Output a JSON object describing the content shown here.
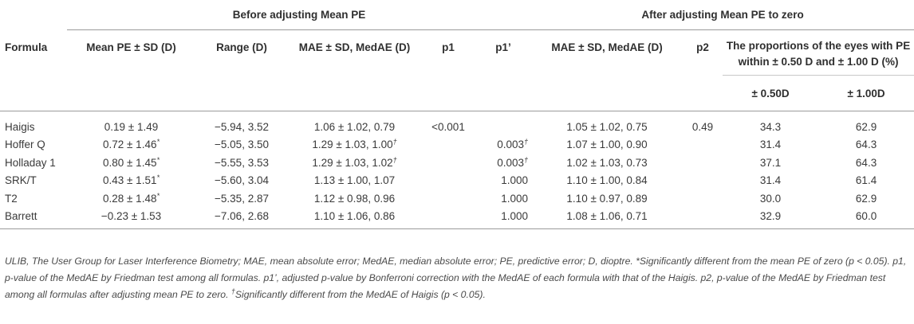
{
  "groups": {
    "before": "Before adjusting Mean PE",
    "after": "After adjusting Mean PE to zero"
  },
  "columns": {
    "formula": "Formula",
    "mean_pe": "Mean PE ± SD (D)",
    "range": "Range (D)",
    "mae_before": "MAE ± SD, MedAE (D)",
    "p1": "p1",
    "p1p": "p1’",
    "mae_after": "MAE ± SD, MedAE (D)",
    "p2": "p2",
    "proportions": "The proportions of the eyes with PE within ± 0.50 D and ± 1.00 D (%)",
    "within050": "± 0.50D",
    "within100": "± 1.00D"
  },
  "rows": [
    {
      "formula": "Haigis",
      "mean_pe": "0.19 ± 1.49",
      "mean_sup": "",
      "range": "−5.94, 3.52",
      "mae_before": "1.06 ± 1.02, 0.79",
      "mae_sup": "",
      "p1": "<0.001",
      "p1p": "",
      "p1p_sup": "",
      "mae_after": "1.05 ± 1.02, 0.75",
      "p2": "0.49",
      "within050": "34.3",
      "within100": "62.9"
    },
    {
      "formula": "Hoffer Q",
      "mean_pe": "0.72 ± 1.46",
      "mean_sup": "*",
      "range": "−5.05, 3.50",
      "mae_before": "1.29 ± 1.03, 1.00",
      "mae_sup": "†",
      "p1": "",
      "p1p": "0.003",
      "p1p_sup": "†",
      "mae_after": "1.07 ± 1.00, 0.90",
      "p2": "",
      "within050": "31.4",
      "within100": "64.3"
    },
    {
      "formula": "Holladay 1",
      "mean_pe": "0.80 ± 1.45",
      "mean_sup": "*",
      "range": "−5.55, 3.53",
      "mae_before": "1.29 ± 1.03, 1.02",
      "mae_sup": "†",
      "p1": "",
      "p1p": "0.003",
      "p1p_sup": "†",
      "mae_after": "1.02 ± 1.03, 0.73",
      "p2": "",
      "within050": "37.1",
      "within100": "64.3"
    },
    {
      "formula": "SRK/T",
      "mean_pe": "0.43 ± 1.51",
      "mean_sup": "*",
      "range": "−5.60, 3.04",
      "mae_before": "1.13 ± 1.00, 1.07",
      "mae_sup": "",
      "p1": "",
      "p1p": "1.000",
      "p1p_sup": "",
      "mae_after": "1.10 ± 1.00, 0.84",
      "p2": "",
      "within050": "31.4",
      "within100": "61.4"
    },
    {
      "formula": "T2",
      "mean_pe": "0.28 ± 1.48",
      "mean_sup": "*",
      "range": "−5.35, 2.87",
      "mae_before": "1.12 ± 0.98, 0.96",
      "mae_sup": "",
      "p1": "",
      "p1p": "1.000",
      "p1p_sup": "",
      "mae_after": "1.10 ± 0.97, 0.89",
      "p2": "",
      "within050": "30.0",
      "within100": "62.9"
    },
    {
      "formula": "Barrett",
      "mean_pe": "−0.23 ± 1.53",
      "mean_sup": "",
      "range": "−7.06, 2.68",
      "mae_before": "1.10 ± 1.06, 0.86",
      "mae_sup": "",
      "p1": "",
      "p1p": "1.000",
      "p1p_sup": "",
      "mae_after": "1.08 ± 1.06, 0.71",
      "p2": "",
      "within050": "32.9",
      "within100": "60.0"
    }
  ],
  "footnote": {
    "main": "ULIB, The User Group for Laser Interference Biometry; MAE, mean absolute error; MedAE, median absolute error; PE, predictive error; D, dioptre. *Significantly different from the mean PE of zero (p < 0.05). p1, p-value of the MedAE by Friedman test among all formulas. p1’, adjusted p-value by Bonferroni correction with the MedAE of each formula with that of the Haigis. p2, p-value of the MedAE by Friedman test among all formulas after adjusting mean PE to zero. ",
    "dagger": "†",
    "tail": "Significantly different from the MedAE of Haigis (p < 0.05)."
  }
}
